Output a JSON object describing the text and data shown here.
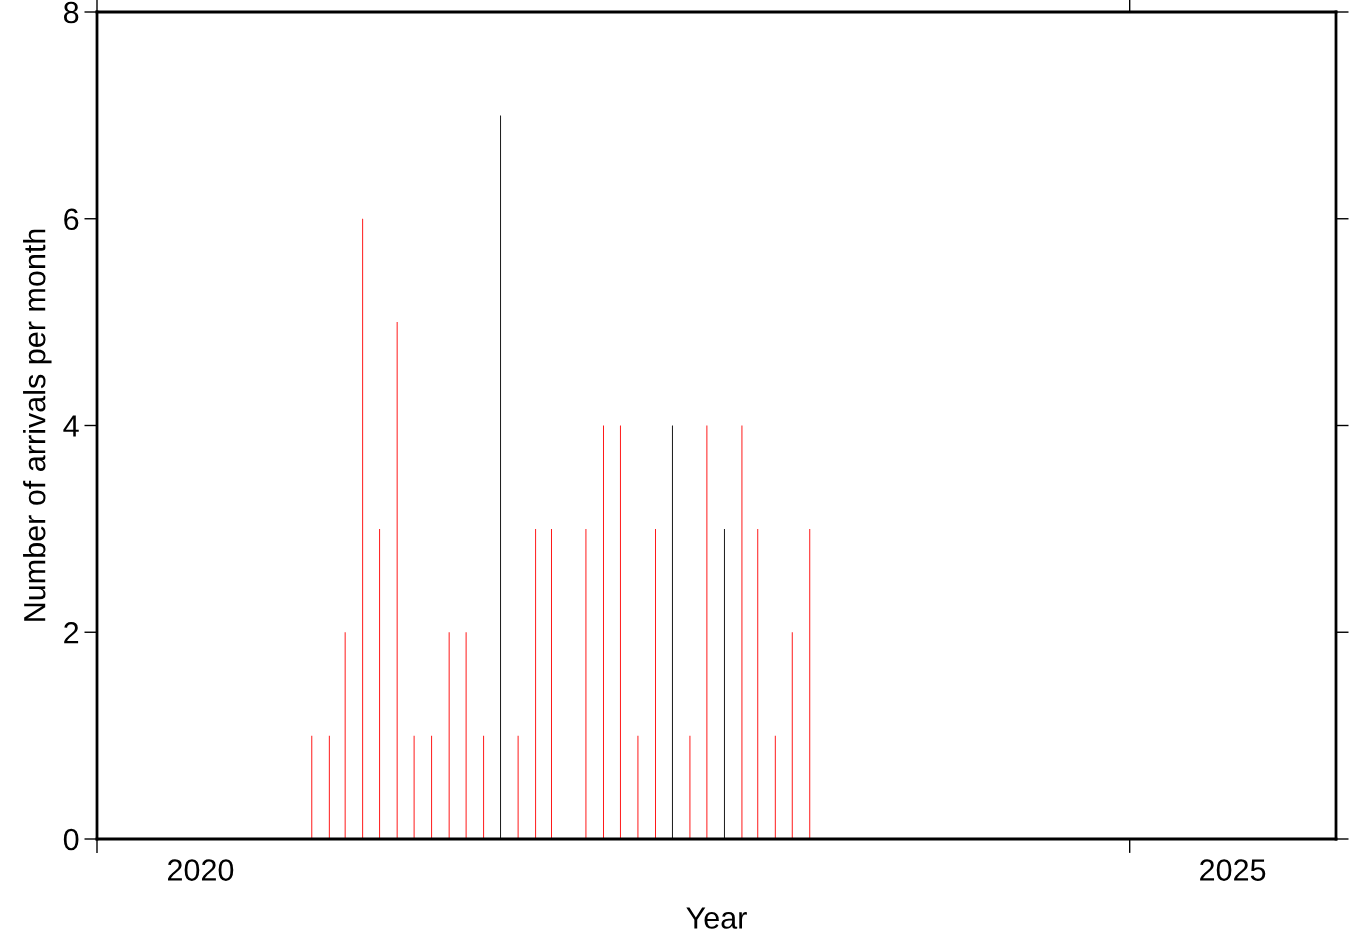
{
  "chart_data": {
    "type": "bar",
    "xlabel": "Year",
    "ylabel": "Number of arrivals per month",
    "xlim": [
      "2020-01-01",
      "2026-01-01"
    ],
    "xticks": [
      {
        "value": "2020-01-01",
        "label": null
      },
      {
        "value": "2020-07-02",
        "label": "2020"
      },
      {
        "value": "2025-01-01",
        "label": null
      },
      {
        "value": "2025-07-02",
        "label": "2025"
      }
    ],
    "ylim": [
      0,
      8
    ],
    "yticks": [
      0,
      2,
      4,
      6,
      8
    ],
    "grid": false,
    "legend": false,
    "series": [
      {
        "color": "#ff0000",
        "x": [
          "2021-01-15",
          "2021-02-15",
          "2021-03-15",
          "2021-04-15",
          "2021-05-15",
          "2021-06-15",
          "2021-07-15",
          "2021-08-15",
          "2021-09-15",
          "2021-10-15",
          "2021-11-15",
          "2022-01-15",
          "2022-02-15",
          "2022-03-15",
          "2022-05-15",
          "2022-06-15",
          "2022-07-15",
          "2022-08-15",
          "2022-09-15",
          "2022-11-15",
          "2022-12-15",
          "2023-02-15",
          "2023-03-15",
          "2023-04-15",
          "2023-05-15",
          "2023-06-15"
        ],
        "values": [
          1,
          1,
          2,
          6,
          3,
          5,
          1,
          1,
          2,
          2,
          1,
          1,
          3,
          3,
          3,
          4,
          4,
          1,
          3,
          1,
          4,
          4,
          3,
          1,
          2,
          3
        ]
      },
      {
        "color": "#000000",
        "x": [
          "2021-12-15",
          "2022-10-15",
          "2023-01-15"
        ],
        "values": [
          7,
          4,
          3
        ]
      }
    ]
  }
}
